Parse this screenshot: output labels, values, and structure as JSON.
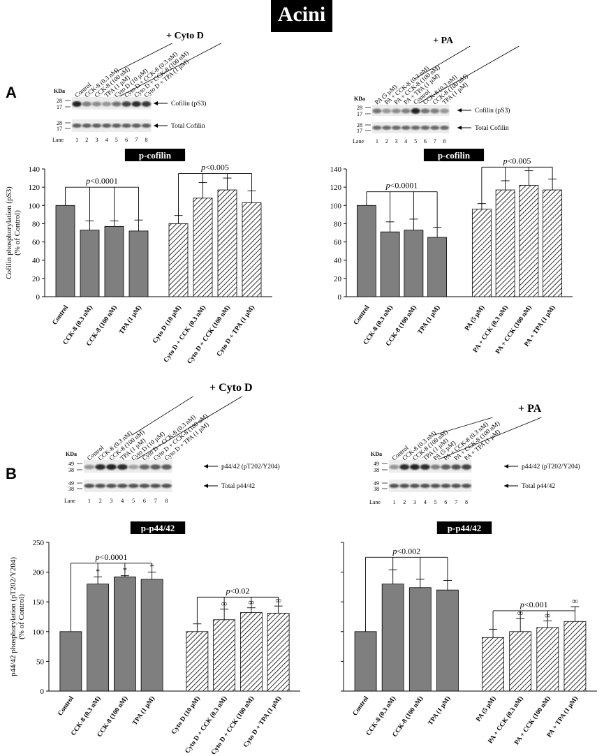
{
  "title": "Acini",
  "panel_labels": [
    "A",
    "B"
  ],
  "blot_common": {
    "kda_label": "KDa",
    "lane_label": "Lane",
    "lanes": [
      "1",
      "2",
      "3",
      "4",
      "5",
      "6",
      "7",
      "8"
    ]
  },
  "blots": [
    {
      "header": "+ Cyto D",
      "lane_names": [
        "Control",
        "CCK-8 (0.3 nM)",
        "CCK-8 (100 nM)",
        "TPA (1 µM)",
        "Cyto D (10 µM)",
        "Cyto D + CCK-8 (0.3 nM)",
        "Cyto D + CCK-8 (100 nM)",
        "Cyto D + TPA (1 µM)"
      ],
      "top_markers": [
        "28",
        "17"
      ],
      "bottom_markers": [
        "28",
        "17"
      ],
      "band_top": "Cofilin (pS3)",
      "band_bottom": "Total Cofilin",
      "top_intensity": [
        0.95,
        0.55,
        0.5,
        0.45,
        0.6,
        0.8,
        0.9,
        0.85
      ],
      "bottom_intensity": [
        0.7,
        0.7,
        0.7,
        0.7,
        0.7,
        0.7,
        0.7,
        0.7
      ]
    },
    {
      "header": "+ PA",
      "lane_names": [
        "PA (5 µM)",
        "PA + CCK-8 (0.3 nM)",
        "PA + CCK-8 (100 nM)",
        "PA + TPA (1 µM)",
        "Control",
        "CCK-8 (0.3 nM)",
        "CCK-8 (100 nM)",
        "TPA (1 µM)"
      ],
      "top_markers": [
        "28",
        "17"
      ],
      "bottom_markers": [
        "28",
        "17"
      ],
      "band_top": "Cofilin (pS3)",
      "band_bottom": "Total Cofilin",
      "top_intensity": [
        0.6,
        0.45,
        0.5,
        0.55,
        0.95,
        0.6,
        0.55,
        0.45
      ],
      "bottom_intensity": [
        0.65,
        0.65,
        0.65,
        0.65,
        0.65,
        0.65,
        0.65,
        0.65
      ]
    },
    {
      "header": "+ Cyto D",
      "lane_names": [
        "Control",
        "CCK-8 (0.3 nM)",
        "CCK-8 (100 nM)",
        "TPA (1 µM)",
        "Cyto D (10 µM)",
        "Cyto D + CCK-8 (0.3 nM)",
        "Cyto D + CCK-8 (100 nM)",
        "Cyto D + TPA (1 µM)"
      ],
      "top_markers": [
        "49",
        "38"
      ],
      "bottom_markers": [
        "49",
        "38"
      ],
      "band_top": "p44/42 (pT202/Y204)",
      "band_bottom": "Total p44/42",
      "top_intensity": [
        0.45,
        0.9,
        0.95,
        0.9,
        0.4,
        0.65,
        0.7,
        0.7
      ],
      "bottom_intensity": [
        0.75,
        0.75,
        0.75,
        0.75,
        0.75,
        0.75,
        0.75,
        0.75
      ]
    },
    {
      "header": "+ PA",
      "lane_names": [
        "Control",
        "CCK-8 (0.3 nM)",
        "CCK-8 (100 nM)",
        "TPA (1 µM)",
        "PA (5 µM)",
        "PA + CCK-8 (0.3 nM)",
        "PA + CCK-8 (100 nM)",
        "PA + TPA (1 µM)"
      ],
      "top_markers": [
        "49",
        "38"
      ],
      "bottom_markers": [
        "49",
        "38"
      ],
      "band_top": "p44/42 (pT202/Y204)",
      "band_bottom": "Total p44/42",
      "top_intensity": [
        0.45,
        0.9,
        0.95,
        0.9,
        0.55,
        0.7,
        0.75,
        0.8
      ],
      "bottom_intensity": [
        0.75,
        0.75,
        0.75,
        0.75,
        0.75,
        0.75,
        0.75,
        0.75
      ]
    }
  ],
  "colors": {
    "solid_bar": "#7f7f7f",
    "hatch": "#000000"
  },
  "chart_data": [
    {
      "type": "bar",
      "title": "p-cofilin",
      "ylabel": "Cofilin phosphorylation (pS3)\n(% of Control)",
      "ylim": [
        0,
        140
      ],
      "yticks": [
        0,
        20,
        40,
        60,
        80,
        100,
        120,
        140
      ],
      "categories": [
        "Control",
        "CCK-8 (0.3 nM)",
        "CCK-8 (100 nM)",
        "TPA (1 µM)",
        "Cyto D (10 µM)",
        "Cyto D + CCK (0.3 nM)",
        "Cyto D + CCK (100 nM)",
        "Cyto D + TPA (1 µM)"
      ],
      "values": [
        100,
        73,
        77,
        72,
        80,
        108,
        117,
        103
      ],
      "errors": [
        0,
        10,
        6,
        12,
        9,
        17,
        13,
        13
      ],
      "hatched": [
        false,
        false,
        false,
        false,
        true,
        true,
        true,
        true
      ],
      "marks": [
        "",
        "",
        "",
        "",
        "",
        "",
        "",
        ""
      ],
      "brackets": [
        {
          "from": 0,
          "to": 3,
          "label_p": "p",
          "label_rest": "<0.0001",
          "y": 120
        },
        {
          "from": 4,
          "to": 7,
          "label_p": "p",
          "label_rest": "<0.005",
          "y": 135
        }
      ]
    },
    {
      "type": "bar",
      "title": "p-cofilin",
      "ylabel": "",
      "ylim": [
        0,
        140
      ],
      "yticks": [
        0,
        20,
        40,
        60,
        80,
        100,
        120,
        140
      ],
      "categories": [
        "Control",
        "CCK-8 (0.3 nM)",
        "CCK-8 (100 nM)",
        "TPA (1 µM)",
        "PA (5 µM)",
        "PA + CCK (0.3 nM)",
        "PA + CCK (100 nM)",
        "PA + TPA (1 µM)"
      ],
      "values": [
        100,
        71,
        73,
        65,
        96,
        117,
        122,
        117
      ],
      "errors": [
        0,
        11,
        12,
        11,
        6,
        10,
        16,
        12
      ],
      "hatched": [
        false,
        false,
        false,
        false,
        true,
        true,
        true,
        true
      ],
      "marks": [
        "",
        "",
        "",
        "",
        "",
        "",
        "",
        ""
      ],
      "brackets": [
        {
          "from": 0,
          "to": 3,
          "label_p": "p",
          "label_rest": "<0.0001",
          "y": 115
        },
        {
          "from": 4,
          "to": 7,
          "label_p": "p",
          "label_rest": "<0.005",
          "y": 142
        }
      ]
    },
    {
      "type": "bar",
      "title": "p-p44/42",
      "ylabel": "p44/42 phosphorylation (pT202/Y204)\n(% of Control)",
      "ylim": [
        0,
        250
      ],
      "yticks": [
        0,
        50,
        100,
        150,
        200,
        250
      ],
      "categories": [
        "Control",
        "CCK-8 (0.3 nM)",
        "CCK-8 (100 nM)",
        "TPA (1 µM)",
        "Cyto D (10 µM)",
        "Cyto D + CCK (0.3 nM)",
        "Cyto D + CCK (100 nM)",
        "Cyto D + TPA (1 µM)"
      ],
      "values": [
        100,
        180,
        192,
        188,
        100,
        120,
        132,
        131
      ],
      "errors": [
        0,
        12,
        2,
        12,
        13,
        18,
        8,
        12
      ],
      "hatched": [
        false,
        false,
        false,
        false,
        true,
        true,
        true,
        true
      ],
      "marks": [
        "",
        "*",
        "*",
        "*",
        "",
        "∞",
        "∞",
        "∞"
      ],
      "brackets": [
        {
          "from": 0,
          "to": 3,
          "label_p": "p",
          "label_rest": "<0.0001",
          "y": 215
        },
        {
          "from": 4,
          "to": 7,
          "label_p": "p",
          "label_rest": "<0.02",
          "y": 158
        }
      ]
    },
    {
      "type": "bar",
      "title": "p-p44/42",
      "ylabel": "",
      "ylim": [
        0,
        250
      ],
      "yticks": [],
      "categories": [
        "Control",
        "CCK-8 (0.3 nM)",
        "CCK-8 (100 nM)",
        "TPA (1 µM)",
        "PA (5 µM)",
        "PA + CCK (0.3 nM)",
        "PA + CCK (100 nM)",
        "PA + TPA (1 µM)"
      ],
      "values": [
        100,
        180,
        174,
        170,
        90,
        100,
        107,
        117
      ],
      "errors": [
        0,
        24,
        14,
        16,
        14,
        22,
        11,
        25
      ],
      "hatched": [
        false,
        false,
        false,
        false,
        true,
        true,
        true,
        true
      ],
      "marks": [
        "",
        "",
        "",
        "",
        "",
        "∞",
        "∞",
        "∞"
      ],
      "brackets": [
        {
          "from": 0,
          "to": 3,
          "label_p": "p",
          "label_rest": "<0.002",
          "y": 225
        },
        {
          "from": 4,
          "to": 7,
          "label_p": "p",
          "label_rest": "<0.001",
          "y": 135
        }
      ]
    }
  ]
}
